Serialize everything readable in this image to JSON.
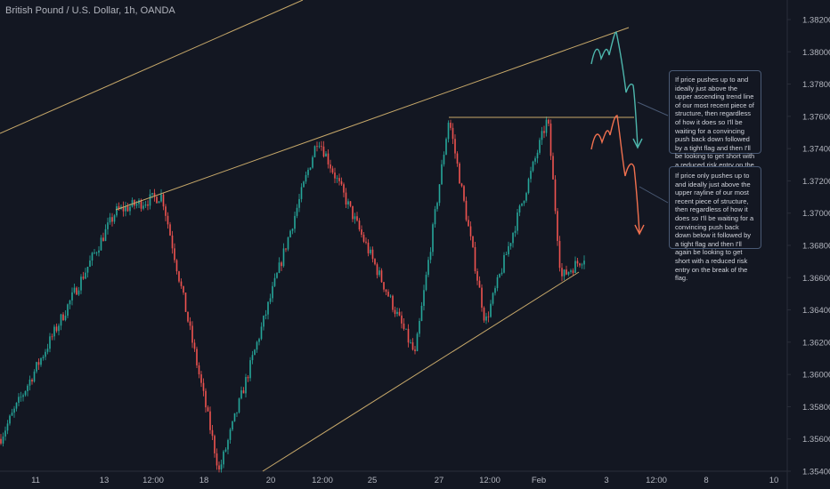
{
  "header": {
    "title": "British Pound / U.S. Dollar, 1h, OANDA"
  },
  "colors": {
    "background": "#131722",
    "up": "#26a69a",
    "down": "#ef5350",
    "trendline": "#c8a96a",
    "projection_up": "#4db6ac",
    "projection_down": "#f0704f"
  },
  "notes": [
    {
      "text": "If price pushes up to and ideally just above the upper ascending trend line of our most recent piece of structure, then regardless of how it does so I'll be waiting for a convincing push back down followed by a tight flag and then I'll be looking to get short with a reduced risk entry on the break of the flag."
    },
    {
      "text": "If price only pushes up to and ideally just above the upper rayline of our most recent piece of structure, then regardless of how it does so I'll be waiting for a convincing push back down below it followed by a tight flag and then I'll again be looking to get short with a reduced risk entry on the break of the flag."
    }
  ],
  "chart_data": {
    "type": "candlestick",
    "y_ticks": [
      "1.38200",
      "1.38000",
      "1.37800",
      "1.37600",
      "1.37400",
      "1.37200",
      "1.37000",
      "1.36800",
      "1.36600",
      "1.36400",
      "1.36200",
      "1.36000",
      "1.35800",
      "1.35600",
      "1.35400"
    ],
    "x_ticks": [
      "11",
      "13",
      "12:00",
      "18",
      "20",
      "12:00",
      "25",
      "27",
      "12:00",
      "Feb",
      "3",
      "12:00",
      "8",
      "10"
    ],
    "ylim": [
      1.354,
      1.382
    ],
    "key_points": [
      {
        "label": "low",
        "value": 1.356
      },
      {
        "label": "swing high",
        "value": 1.3701
      },
      {
        "label": "swing high",
        "value": 1.3711
      },
      {
        "label": "low",
        "value": 1.354
      },
      {
        "label": "swing high",
        "value": 1.3747
      },
      {
        "label": "swing low",
        "value": 1.3612
      },
      {
        "label": "high",
        "value": 1.3759
      },
      {
        "label": "swing low",
        "value": 1.3632
      },
      {
        "label": "high",
        "value": 1.3759
      },
      {
        "label": "swing low",
        "value": 1.366
      },
      {
        "label": "last",
        "value": 1.3673
      }
    ],
    "rayline_level": 1.3759
  }
}
